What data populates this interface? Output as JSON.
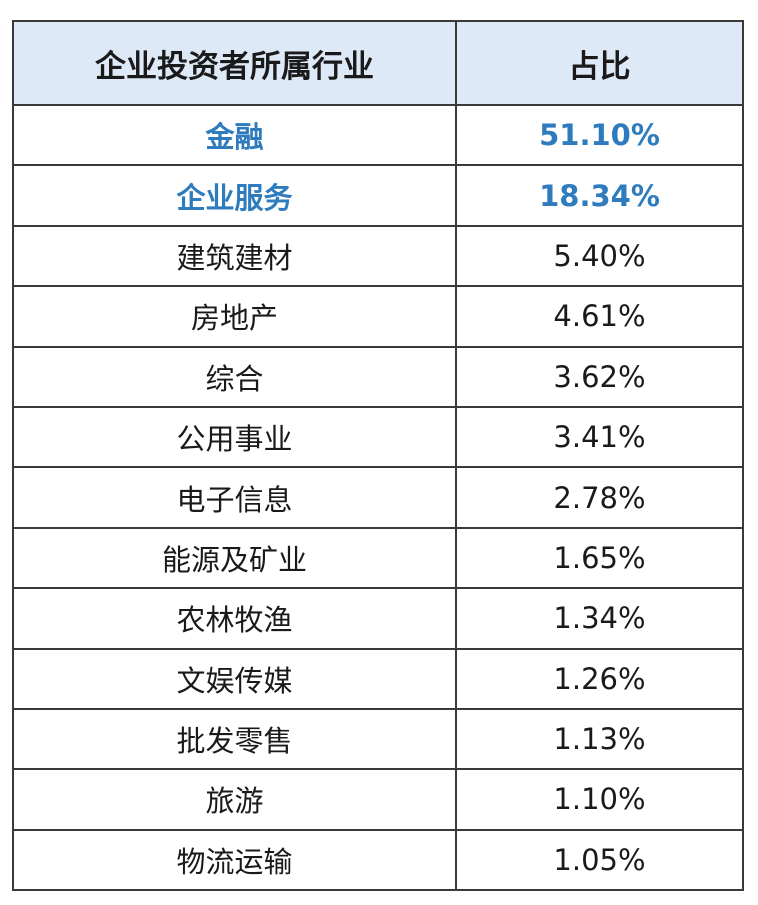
{
  "table": {
    "header": [
      "企业投资者所属行业",
      "占比"
    ],
    "rows": [
      [
        "金融",
        "51.10%"
      ],
      [
        "企业服务",
        "18.34%"
      ],
      [
        "建筑建材",
        "5.40%"
      ],
      [
        "房地产",
        "4.61%"
      ],
      [
        "综合",
        "3.62%"
      ],
      [
        "公用事业",
        "3.41%"
      ],
      [
        "电子信息",
        "2.78%"
      ],
      [
        "能源及矿业",
        "1.65%"
      ],
      [
        "农林牧渔",
        "1.34%"
      ],
      [
        "文娱传媒",
        "1.26%"
      ],
      [
        "批发零售",
        "1.13%"
      ],
      [
        "旅游",
        "1.10%"
      ],
      [
        "物流运输",
        "1.05%"
      ]
    ]
  }
}
